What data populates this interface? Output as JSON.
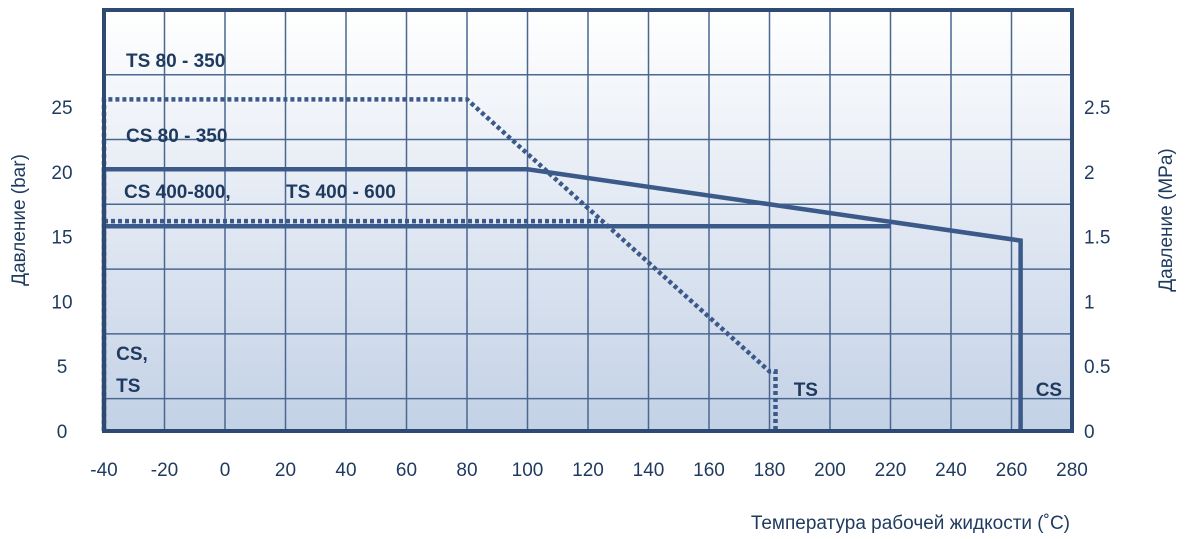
{
  "chart_data": {
    "type": "line",
    "x_axis": {
      "label": "Температура рабочей жидкости (˚C)",
      "ticks": [
        -40,
        -20,
        0,
        20,
        40,
        60,
        80,
        100,
        120,
        140,
        160,
        180,
        200,
        220,
        240,
        260,
        280
      ],
      "range": [
        -40,
        280
      ]
    },
    "y_axis_left": {
      "label": "Давление (bar)",
      "ticks": [
        0,
        5,
        10,
        15,
        20,
        25
      ],
      "range": [
        0,
        32.5
      ]
    },
    "y_axis_right": {
      "label": "Давление (MPa)",
      "ticks": [
        "0",
        "0.5",
        "1",
        "1.5",
        "2",
        "2.5"
      ]
    },
    "grid": true,
    "series": [
      {
        "name": "TS 80 - 350",
        "style": "dotted",
        "points": [
          [
            -40,
            0
          ],
          [
            -40,
            25.6
          ],
          [
            80,
            25.6
          ],
          [
            180,
            4.6
          ],
          [
            182,
            4.6
          ],
          [
            182,
            0
          ]
        ]
      },
      {
        "name": "CS 80 - 350",
        "style": "solid",
        "points": [
          [
            -40,
            0
          ],
          [
            -40,
            20.2
          ],
          [
            100,
            20.2
          ],
          [
            263,
            14.7
          ],
          [
            263,
            0
          ]
        ]
      },
      {
        "name": "CS 400-800,",
        "style": "solid",
        "points": [
          [
            -40,
            15.8
          ],
          [
            220,
            15.8
          ]
        ]
      },
      {
        "name": "TS 400 - 600",
        "style": "dotted",
        "points": [
          [
            -40,
            16.2
          ],
          [
            100,
            16.2
          ],
          [
            125,
            16.2
          ]
        ]
      }
    ],
    "annotations": [
      {
        "text": "CS,",
        "x": -36,
        "y": 5.5
      },
      {
        "text": "TS",
        "x": -36,
        "y": 3.0
      },
      {
        "text": "TS",
        "x": 188,
        "y": 2.7
      },
      {
        "text": "CS",
        "x": 268,
        "y": 2.7
      }
    ],
    "colors": {
      "line": "#3b5a89",
      "frame": "#2e4a73",
      "grid": "#4a6790",
      "text": "#1f3a5f",
      "bg_top": "#ffffff",
      "bg_bottom": "#c3d1e6"
    }
  }
}
